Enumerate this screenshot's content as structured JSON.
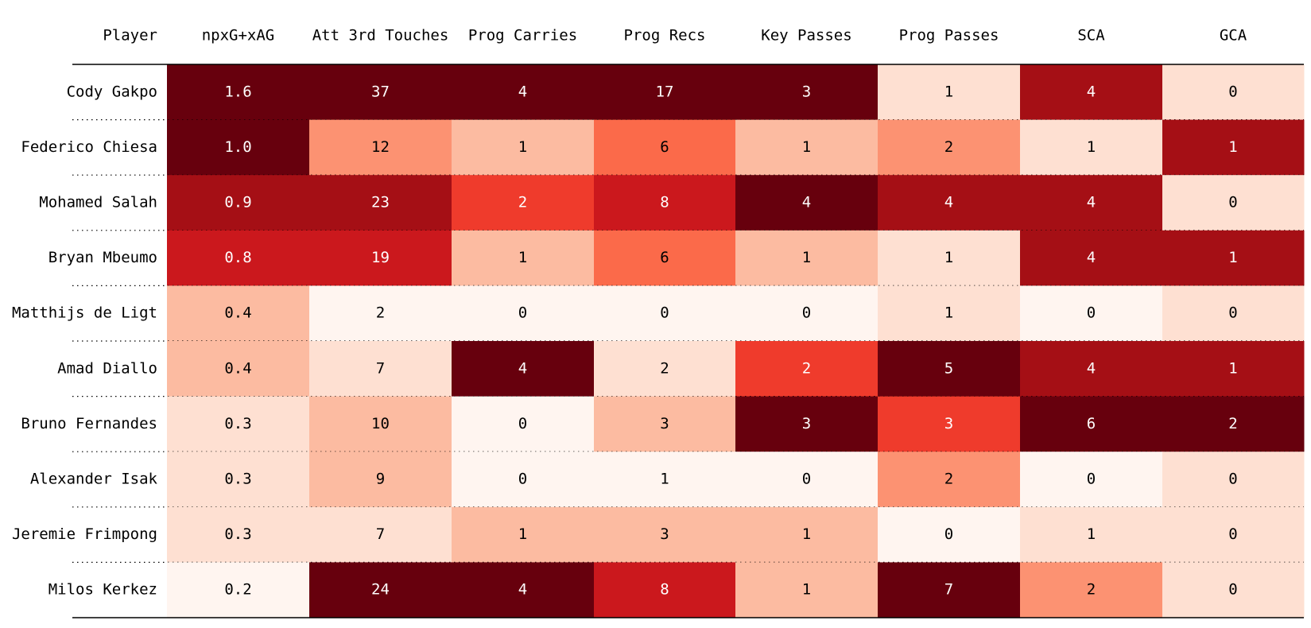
{
  "chart_data": {
    "type": "heatmap",
    "columns": [
      "Player",
      "npxG+xAG",
      "Att 3rd Touches",
      "Prog Carries",
      "Prog Recs",
      "Key Passes",
      "Prog Passes",
      "SCA",
      "GCA"
    ],
    "rows": [
      {
        "player": "Cody Gakpo",
        "values": [
          "1.6",
          "37",
          "4",
          "17",
          "3",
          "1",
          "4",
          "0"
        ]
      },
      {
        "player": "Federico Chiesa",
        "values": [
          "1.0",
          "12",
          "1",
          "6",
          "1",
          "2",
          "1",
          "1"
        ]
      },
      {
        "player": "Mohamed Salah",
        "values": [
          "0.9",
          "23",
          "2",
          "8",
          "4",
          "4",
          "4",
          "0"
        ]
      },
      {
        "player": "Bryan Mbeumo",
        "values": [
          "0.8",
          "19",
          "1",
          "6",
          "1",
          "1",
          "4",
          "1"
        ]
      },
      {
        "player": "Matthijs de Ligt",
        "values": [
          "0.4",
          "2",
          "0",
          "0",
          "0",
          "1",
          "0",
          "0"
        ]
      },
      {
        "player": "Amad Diallo",
        "values": [
          "0.4",
          "7",
          "4",
          "2",
          "2",
          "5",
          "4",
          "1"
        ]
      },
      {
        "player": "Bruno Fernandes",
        "values": [
          "0.3",
          "10",
          "0",
          "3",
          "3",
          "3",
          "6",
          "2"
        ]
      },
      {
        "player": "Alexander Isak",
        "values": [
          "0.3",
          "9",
          "0",
          "1",
          "0",
          "2",
          "0",
          "0"
        ]
      },
      {
        "player": "Jeremie Frimpong",
        "values": [
          "0.3",
          "7",
          "1",
          "3",
          "1",
          "0",
          "1",
          "0"
        ]
      },
      {
        "player": "Milos Kerkez",
        "values": [
          "0.2",
          "24",
          "4",
          "8",
          "1",
          "7",
          "2",
          "0"
        ]
      }
    ],
    "colormap": "Reds",
    "colors": {
      "c0": "#fff5f0",
      "c1": "#fee0d2",
      "c2": "#fcbba1",
      "c3": "#fc9272",
      "c4": "#fb6a4a",
      "c5": "#ef3b2c",
      "c6": "#cb181d",
      "c7": "#a50f15",
      "c8": "#67000d"
    },
    "cell_shades": [
      [
        8,
        8,
        8,
        8,
        8,
        1,
        7,
        1
      ],
      [
        8,
        3,
        2,
        4,
        2,
        3,
        1,
        7
      ],
      [
        7,
        7,
        5,
        6,
        8,
        7,
        7,
        1
      ],
      [
        6,
        6,
        2,
        4,
        2,
        1,
        7,
        7
      ],
      [
        2,
        0,
        0,
        0,
        0,
        1,
        0,
        1
      ],
      [
        2,
        1,
        8,
        1,
        5,
        8,
        7,
        7
      ],
      [
        1,
        2,
        0,
        2,
        8,
        5,
        8,
        8
      ],
      [
        1,
        2,
        0,
        0,
        0,
        3,
        0,
        1
      ],
      [
        1,
        1,
        2,
        2,
        2,
        0,
        1,
        1
      ],
      [
        0,
        8,
        8,
        6,
        2,
        8,
        3,
        1
      ]
    ]
  }
}
